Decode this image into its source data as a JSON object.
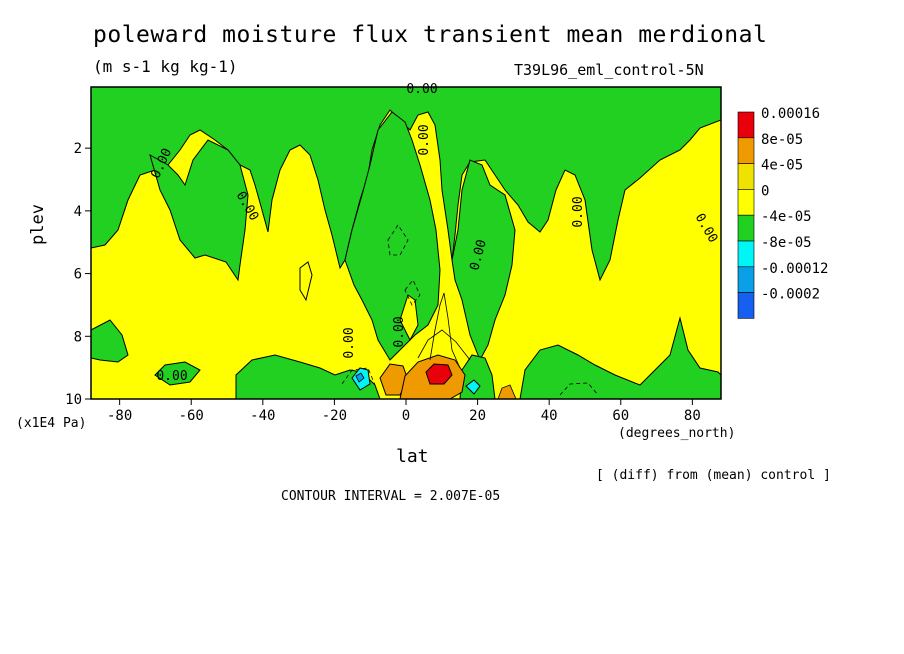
{
  "chart_data": {
    "type": "heatmap",
    "title": "poleward moisture flux transient mean merdional",
    "units": "(m s-1 kg kg-1)",
    "run_label": "T39L96_eml_control-5N",
    "diff_note": "[ (diff) from (mean) control ]",
    "contour_interval": "CONTOUR INTERVAL = 2.007E-05",
    "xlabel": "lat",
    "xunit": "(degrees_north)",
    "ylabel": "plev",
    "yunit": "(x1E4 Pa)",
    "xlim": [
      -88,
      88
    ],
    "ylim": [
      0.05,
      10
    ],
    "y_inverted": true,
    "xticks": [
      "-80",
      "-60",
      "-40",
      "-20",
      "0",
      "20",
      "40",
      "60",
      "80"
    ],
    "xtick_values": [
      -80,
      -60,
      -40,
      -20,
      0,
      20,
      40,
      60,
      80
    ],
    "yticks": [
      "2",
      "4",
      "6",
      "8",
      "10"
    ],
    "ytick_values": [
      2,
      4,
      6,
      8,
      10
    ],
    "zero_contour_label": "0.00",
    "legend": {
      "position": "right",
      "bins": [
        {
          "label": "0.00016",
          "color": "#e8000b"
        },
        {
          "label": "8e-05",
          "color": "#ef9a00"
        },
        {
          "label": "4e-05",
          "color": "#f0e200"
        },
        {
          "label": "0",
          "color": "#ffff00"
        },
        {
          "label": "-4e-05",
          "color": "#22d022"
        },
        {
          "label": "-8e-05",
          "color": "#00f5f5"
        },
        {
          "label": "-0.00012",
          "color": "#0aa0e8"
        },
        {
          "label": "-0.0002",
          "color": "#1560f0"
        }
      ]
    },
    "colors": {
      "positive_band": "#ffff00",
      "negative_band": "#22d022",
      "moderate_positive": "#ef9a00",
      "strong_positive": "#e8000b",
      "moderate_negative": "#00f5f5",
      "strong_negative": "#0aa0e8"
    }
  }
}
